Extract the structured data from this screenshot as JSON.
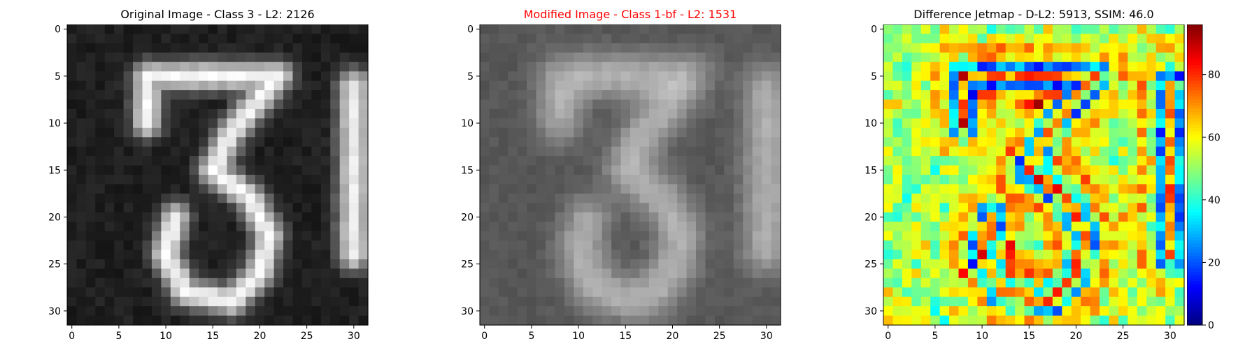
{
  "panels": [
    {
      "title": "Original Image - Class 3 - L2: 2126",
      "title_color": "#000000"
    },
    {
      "title": "Modified Image - Class 1-bf - L2: 1531",
      "title_color": "#ff0000"
    },
    {
      "title": "Difference Jetmap - D-L2: 5913, SSIM: 46.0",
      "title_color": "#000000"
    }
  ],
  "chart_data": [
    {
      "type": "heatmap",
      "title": "Original Image - Class 3 - L2: 2126",
      "colormap": "gray",
      "grid_size": [
        32,
        32
      ],
      "xticks": [
        0,
        5,
        10,
        15,
        20,
        25,
        30
      ],
      "yticks": [
        0,
        5,
        10,
        15,
        20,
        25,
        30
      ],
      "xlim": [
        -0.5,
        31.5
      ],
      "ylim": [
        31.5,
        -0.5
      ],
      "content": "grayscale handwritten digit '3' with a bright vertical stroke at the right edge"
    },
    {
      "type": "heatmap",
      "title": "Modified Image - Class 1-bf - L2: 1531",
      "colormap": "gray",
      "grid_size": [
        32,
        32
      ],
      "xticks": [
        0,
        5,
        10,
        15,
        20,
        25,
        30
      ],
      "yticks": [
        0,
        5,
        10,
        15,
        20,
        25,
        30
      ],
      "xlim": [
        -0.5,
        31.5
      ],
      "ylim": [
        31.5,
        -0.5
      ],
      "content": "blurred, lower-contrast version of the digit"
    },
    {
      "type": "heatmap",
      "title": "Difference Jetmap - D-L2: 5913, SSIM: 46.0",
      "colormap": "jet",
      "grid_size": [
        32,
        32
      ],
      "xticks": [
        0,
        5,
        10,
        15,
        20,
        25,
        30
      ],
      "yticks": [
        0,
        5,
        10,
        15,
        20,
        25,
        30
      ],
      "xlim": [
        -0.5,
        31.5
      ],
      "ylim": [
        31.5,
        -0.5
      ],
      "colorbar": {
        "min": 0,
        "max": 96,
        "ticks": [
          0,
          20,
          40,
          60,
          80
        ]
      }
    }
  ]
}
